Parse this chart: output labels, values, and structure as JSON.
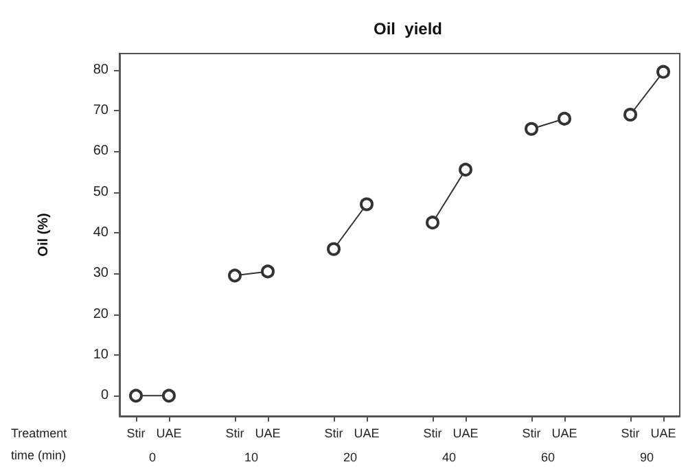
{
  "chart_data": {
    "type": "line",
    "title": "Oil  yield",
    "ylabel": "Oil (%)",
    "categories": [
      "Stir",
      "UAE",
      null,
      "Stir",
      "UAE",
      null,
      "Stir",
      "UAE",
      null,
      "Stir",
      "UAE",
      null,
      "Stir",
      "UAE",
      null,
      "Stir",
      "UAE"
    ],
    "series": [
      {
        "color": "#333333",
        "values": [
          0,
          0,
          null,
          null,
          null,
          null,
          null,
          null,
          null,
          null,
          null,
          null,
          null,
          null,
          null,
          null,
          null
        ]
      },
      {
        "color": "#333333",
        "values": [
          null,
          null,
          null,
          29.5,
          30.5,
          null,
          null,
          null,
          null,
          null,
          null,
          null,
          null,
          null,
          null,
          null,
          null
        ]
      },
      {
        "color": "#333333",
        "values": [
          null,
          null,
          null,
          null,
          null,
          null,
          36,
          47,
          null,
          null,
          null,
          null,
          null,
          null,
          null,
          null,
          null
        ]
      },
      {
        "color": "#333333",
        "values": [
          null,
          null,
          null,
          null,
          null,
          null,
          null,
          null,
          null,
          42.5,
          55.5,
          null,
          null,
          null,
          null,
          null,
          null
        ]
      },
      {
        "color": "#333333",
        "values": [
          null,
          null,
          null,
          null,
          null,
          null,
          null,
          null,
          null,
          null,
          null,
          null,
          65.5,
          68,
          null,
          null,
          null
        ]
      },
      {
        "color": "#333333",
        "values": [
          null,
          null,
          null,
          null,
          null,
          null,
          null,
          null,
          null,
          null,
          null,
          null,
          null,
          null,
          null,
          69,
          79.5
        ]
      }
    ],
    "ylim": [
      -5,
      84
    ],
    "yticks": [
      0,
      10,
      20,
      30,
      40,
      50,
      60,
      70,
      80
    ],
    "grid": false,
    "marker": "circle",
    "line_style": "solid",
    "annotations": [
      "Treatment",
      "time (min)",
      "0",
      "10",
      "20",
      "40",
      "60",
      "90"
    ]
  }
}
